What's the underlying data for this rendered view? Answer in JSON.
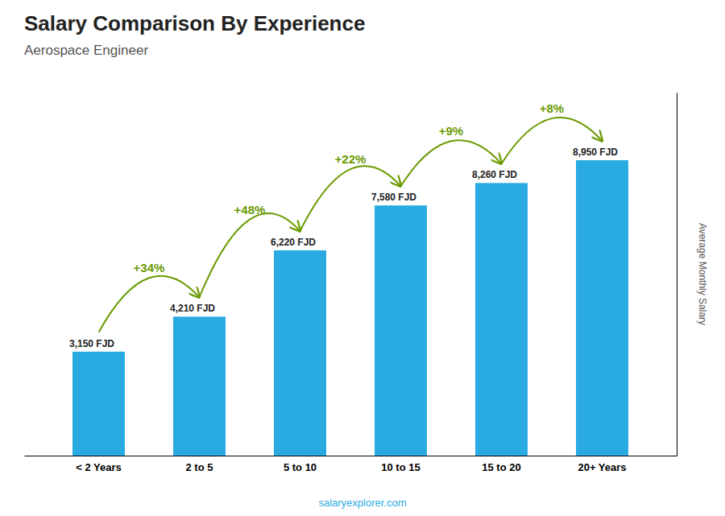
{
  "chart_data": {
    "type": "bar",
    "title": "Salary Comparison By Experience",
    "subtitle": "Aerospace Engineer",
    "ylabel": "Average Monthly Salary",
    "categories": [
      "< 2 Years",
      "2 to 5",
      "5 to 10",
      "10 to 15",
      "15 to 20",
      "20+ Years"
    ],
    "values": [
      3150,
      4210,
      6220,
      7580,
      8260,
      8950
    ],
    "value_labels": [
      "3,150 FJD",
      "4,210 FJD",
      "6,220 FJD",
      "7,580 FJD",
      "8,260 FJD",
      "8,950 FJD"
    ],
    "data_labels": true,
    "color": "#29ABE2",
    "ylim": [
      0,
      11000
    ],
    "tick_labels": "x",
    "annotations": [
      "+34%",
      "+48%",
      "+22%",
      "+9%",
      "+8%"
    ],
    "source": "salaryexplorer.com"
  }
}
